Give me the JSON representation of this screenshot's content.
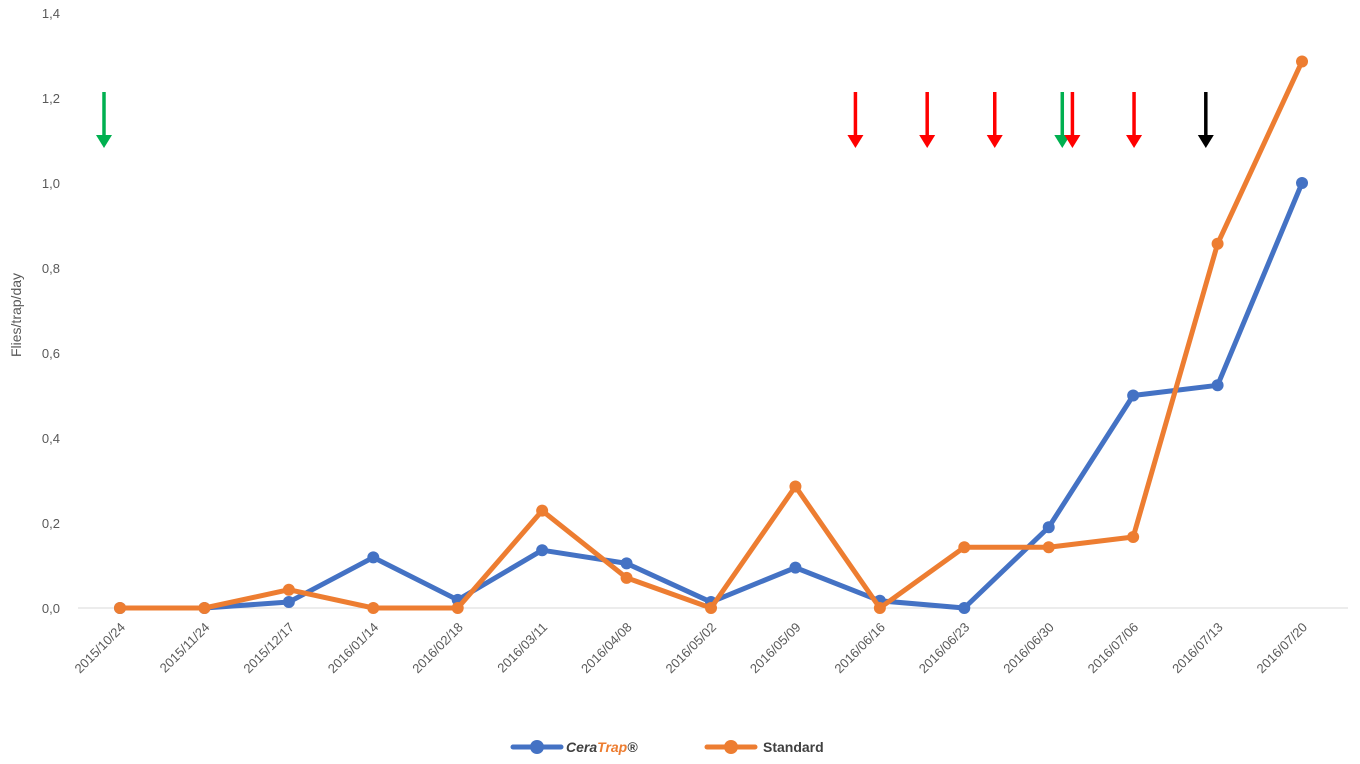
{
  "chart_data": {
    "type": "line",
    "categories": [
      "2015/10/24",
      "2015/11/24",
      "2015/12/17",
      "2016/01/14",
      "2016/02/18",
      "2016/03/11",
      "2016/04/08",
      "2016/05/02",
      "2016/05/09",
      "2016/06/16",
      "2016/06/23",
      "2016/06/30",
      "2016/07/06",
      "2016/07/13",
      "2016/07/20"
    ],
    "series": [
      {
        "name": "CeraTrap®",
        "name_parts": [
          "Cera",
          "Trap",
          "®"
        ],
        "color": "#4472C4",
        "values": [
          0.0,
          0.0,
          0.014,
          0.119,
          0.019,
          0.136,
          0.105,
          0.014,
          0.095,
          0.017,
          0.0,
          0.19,
          0.5,
          0.524,
          1.0
        ]
      },
      {
        "name": "Standard",
        "color": "#ED7D31",
        "values": [
          0.0,
          0.0,
          0.043,
          0.0,
          0.0,
          0.229,
          0.071,
          0.0,
          0.286,
          0.0,
          0.143,
          0.143,
          0.167,
          0.857,
          1.286
        ]
      }
    ],
    "ylabel": "Flies/trap/day",
    "xlabel": "",
    "ylim": [
      0,
      1.4
    ],
    "yticks": [
      "0,0",
      "0,2",
      "0,4",
      "0,6",
      "0,8",
      "1,0",
      "1,2",
      "1,4"
    ],
    "grid": false,
    "legend_position": "bottom",
    "arrows": [
      {
        "x": 0.0,
        "color": "#00B050"
      },
      {
        "x": 8.9,
        "color": "#FF0000"
      },
      {
        "x": 9.75,
        "color": "#FF0000"
      },
      {
        "x": 10.55,
        "color": "#FF0000"
      },
      {
        "x": 11.35,
        "color": "#00B050"
      },
      {
        "x": 11.47,
        "color": "#FF0000"
      },
      {
        "x": 12.2,
        "color": "#FF0000"
      },
      {
        "x": 13.05,
        "color": "#000000"
      }
    ]
  }
}
